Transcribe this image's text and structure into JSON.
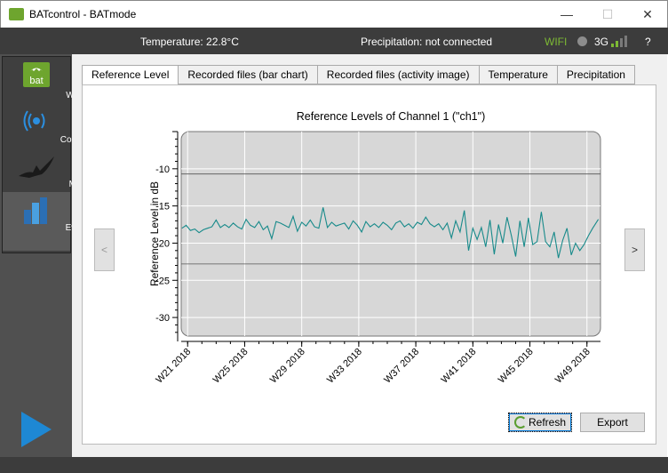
{
  "window": {
    "title": "BATcontrol - BATmode",
    "minimize": "—",
    "maximize": "☐",
    "close": "✕"
  },
  "status": {
    "temperature": "Temperature: 22.8°C",
    "precipitation": "Precipitation: not connected",
    "wifi": "WIFI",
    "cell": "3G",
    "help": "?",
    "wifi_color": "#7dba34"
  },
  "sidebar": {
    "items": [
      {
        "label": "Welcome",
        "icon": "bat-logo-icon"
      },
      {
        "label": "Connectivity",
        "icon": "signal-icon"
      },
      {
        "label": "Monitoring",
        "icon": "bat-icon"
      },
      {
        "label": "Evaluation",
        "icon": "bar-chart-icon"
      }
    ]
  },
  "tabs": [
    "Reference Level",
    "Recorded files (bar chart)",
    "Recorded files (activity image)",
    "Temperature",
    "Precipitation"
  ],
  "nav": {
    "prev": "<",
    "next": ">"
  },
  "buttons": {
    "refresh": "Refresh",
    "export": "Export"
  },
  "chart_data": {
    "type": "line",
    "title": "Reference Levels of Channel 1 (\"ch1\")",
    "ylabel": "Reference Level in dB",
    "xlabel": "",
    "ylim": [
      -32.5,
      -5
    ],
    "yticks": [
      -10,
      -15,
      -20,
      -25,
      -30
    ],
    "xtick_labels": [
      "W21 2018",
      "W25 2018",
      "W29 2018",
      "W33 2018",
      "W37 2018",
      "W41 2018",
      "W45 2018",
      "W49 2018"
    ],
    "xtick_weeks": [
      21,
      25,
      29,
      33,
      37,
      41,
      45,
      49
    ],
    "xlim": [
      20.6,
      49.8
    ],
    "hlines": [
      -10.7,
      -22.8
    ],
    "line_color": "#178a8a",
    "series": [
      {
        "x": [
          20.6,
          20.9,
          21.2,
          21.5,
          21.8,
          22.1,
          22.4,
          22.7,
          23.0,
          23.3,
          23.6,
          23.9,
          24.2,
          24.5,
          24.8,
          25.1,
          25.4,
          25.7,
          26.0,
          26.3,
          26.6,
          26.9,
          27.2,
          27.5,
          27.8,
          28.1,
          28.4,
          28.7,
          29.0,
          29.3,
          29.6,
          29.9,
          30.2,
          30.5,
          30.8,
          31.1,
          31.4,
          31.7,
          32.0,
          32.3,
          32.6,
          32.9,
          33.2,
          33.5,
          33.8,
          34.1,
          34.4,
          34.7,
          35.0,
          35.3,
          35.6,
          35.9,
          36.2,
          36.5,
          36.8,
          37.1,
          37.4,
          37.7,
          38.0,
          38.3,
          38.6,
          38.9,
          39.2,
          39.5,
          39.8,
          40.1,
          40.4,
          40.7,
          41.0,
          41.3,
          41.6,
          41.9,
          42.2,
          42.5,
          42.8,
          43.1,
          43.4,
          43.7,
          44.0,
          44.3,
          44.6,
          44.9,
          45.2,
          45.5,
          45.8,
          46.1,
          46.4,
          46.7,
          47.0,
          47.3,
          47.6,
          47.9,
          48.2,
          48.5,
          48.8,
          49.1,
          49.4,
          49.8
        ],
        "y": [
          -18.0,
          -17.6,
          -18.3,
          -18.1,
          -18.6,
          -18.2,
          -18.0,
          -17.8,
          -16.9,
          -17.9,
          -17.5,
          -17.9,
          -17.3,
          -17.8,
          -18.1,
          -16.8,
          -17.6,
          -17.9,
          -17.1,
          -18.2,
          -17.7,
          -19.4,
          -17.1,
          -17.3,
          -17.6,
          -17.9,
          -16.4,
          -18.4,
          -17.2,
          -17.7,
          -16.9,
          -17.8,
          -18.0,
          -15.2,
          -17.9,
          -17.2,
          -17.7,
          -17.5,
          -17.3,
          -18.1,
          -17.0,
          -17.6,
          -18.5,
          -17.1,
          -17.8,
          -17.4,
          -17.9,
          -17.2,
          -17.6,
          -18.2,
          -17.3,
          -17.0,
          -17.8,
          -17.4,
          -18.0,
          -17.2,
          -17.5,
          -16.5,
          -17.4,
          -17.8,
          -17.4,
          -18.2,
          -17.3,
          -19.3,
          -17.0,
          -18.5,
          -15.6,
          -21.0,
          -18.0,
          -19.5,
          -17.9,
          -20.5,
          -16.9,
          -21.5,
          -17.5,
          -20.0,
          -16.5,
          -19.0,
          -21.8,
          -17.0,
          -20.5,
          -16.6,
          -20.2,
          -19.8,
          -15.8,
          -19.8,
          -20.5,
          -18.5,
          -22.0,
          -19.6,
          -18.0,
          -21.6,
          -20.0,
          -21.0,
          -20.2,
          -19.0,
          -18.0,
          -16.8
        ]
      }
    ]
  }
}
